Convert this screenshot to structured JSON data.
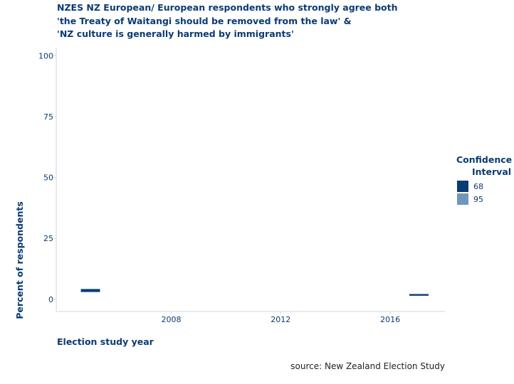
{
  "chart_data": {
    "type": "scatter",
    "title_lines": [
      "NZES NZ European/ European respondents who strongly agree both",
      "'the Treaty of Waitangi should be removed from the law' &",
      "'NZ culture is generally harmed by immigrants'"
    ],
    "xlabel": "Election study year",
    "ylabel": "Percent of respondents",
    "xlim": [
      2003.8,
      2018
    ],
    "ylim": [
      -5,
      103
    ],
    "x_ticks": [
      2008,
      2012,
      2016
    ],
    "x_tick_labels": [
      "2008",
      "2012",
      "2016"
    ],
    "y_ticks": [
      0,
      25,
      50,
      75,
      100
    ],
    "y_tick_labels": [
      "0",
      "25",
      "50",
      "75",
      "100"
    ],
    "grid": false,
    "legend": {
      "title_lines": [
        "Confidence",
        "Interval"
      ],
      "placement": "right",
      "entries": [
        {
          "label": "68",
          "color": "#0b3b72"
        },
        {
          "label": "95",
          "color": "#7096bc"
        }
      ]
    },
    "series": [
      {
        "name": "68",
        "color": "#0b3b72",
        "points": [
          {
            "x_start": 2004.7,
            "x_end": 2005.4,
            "low": 3.1,
            "high": 4.1
          },
          {
            "x_start": 2016.7,
            "x_end": 2017.4,
            "low": 1.5,
            "high": 2.1
          }
        ]
      },
      {
        "name": "95",
        "color": "#7096bc",
        "points": [
          {
            "x_start": 2004.7,
            "x_end": 2005.4,
            "low": 2.9,
            "high": 4.3
          },
          {
            "x_start": 2016.7,
            "x_end": 2017.4,
            "low": 1.4,
            "high": 2.2
          }
        ]
      }
    ],
    "source": "source: New Zealand Election Study"
  }
}
